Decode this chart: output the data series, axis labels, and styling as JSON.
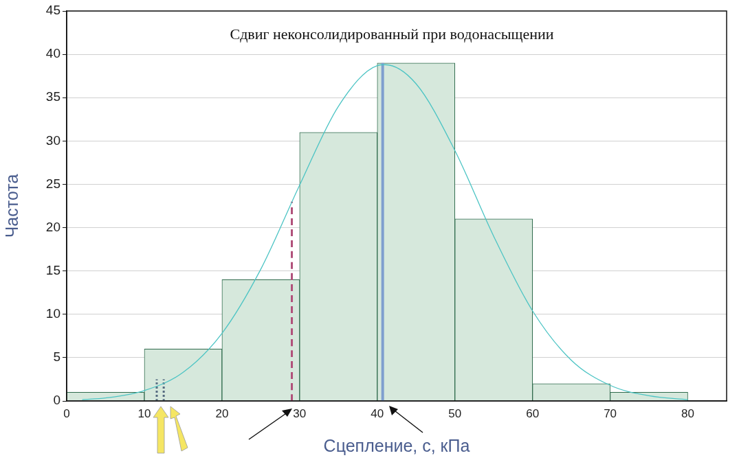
{
  "chart_data": {
    "type": "histogram",
    "title": "Сдвиг неконсолидированный при водонасыщении",
    "xlabel": "Сцепление, с, кПа",
    "ylabel": "Частота",
    "bins": [
      0,
      10,
      20,
      30,
      40,
      50,
      60,
      70,
      80
    ],
    "values": [
      1,
      6,
      14,
      31,
      39,
      21,
      2,
      1
    ],
    "color": "#d6e8dc",
    "series": [
      {
        "type": "line",
        "color": "#4cc4c4",
        "line_style": "solid",
        "x": [
          2,
          5,
          10,
          15,
          20,
          25,
          30,
          35,
          40,
          41,
          45,
          50,
          55,
          60,
          65,
          70,
          75,
          80
        ],
        "values": [
          0.15,
          0.34,
          1.2,
          3.3,
          7.8,
          15.2,
          24.9,
          34,
          38.7,
          38.8,
          36.6,
          28.9,
          19,
          10.4,
          4.7,
          1.8,
          0.6,
          0.15
        ]
      },
      {
        "type": "line",
        "color": "#b0507a",
        "line_style": "dashed",
        "x": [
          29,
          29
        ],
        "values": [
          0,
          23
        ]
      },
      {
        "type": "line",
        "color": "#7f9fcf",
        "line_style": "solid",
        "x": [
          40.7,
          40.7
        ],
        "values": [
          0,
          39
        ]
      },
      {
        "type": "line",
        "color": "#556a80",
        "line_style": "dotted",
        "x": [
          11.6,
          11.6
        ],
        "values": [
          0,
          2.5
        ]
      },
      {
        "type": "line",
        "color": "#556a80",
        "line_style": "dotted",
        "x": [
          12.5,
          12.5
        ],
        "values": [
          0,
          2.5
        ]
      }
    ],
    "xlim": [
      0,
      85
    ],
    "xticks": [
      0,
      10,
      20,
      30,
      40,
      50,
      60,
      70,
      80
    ],
    "ylim": [
      0,
      45
    ],
    "yticks": [
      0,
      5,
      10,
      15,
      20,
      25,
      30,
      35,
      40,
      45
    ],
    "grid": "y"
  }
}
